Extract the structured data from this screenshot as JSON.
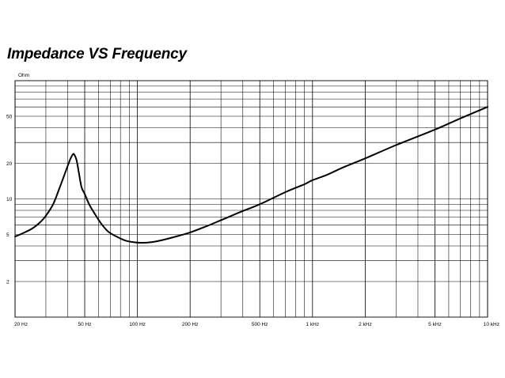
{
  "chart_data": {
    "type": "line",
    "title": "Impedance VS Frequency",
    "ylabel": "Ohm",
    "xlabel": "",
    "x_scale": "log",
    "y_scale": "log",
    "xlim": [
      20,
      10000
    ],
    "ylim": [
      1,
      100
    ],
    "grid": true,
    "x_ticks": [
      {
        "value": 20,
        "label": "20 Hz"
      },
      {
        "value": 50,
        "label": "50 Hz"
      },
      {
        "value": 100,
        "label": "100 Hz"
      },
      {
        "value": 200,
        "label": "200 Hz"
      },
      {
        "value": 500,
        "label": "500 Hz"
      },
      {
        "value": 1000,
        "label": "1 kHz"
      },
      {
        "value": 2000,
        "label": "2 kHz"
      },
      {
        "value": 5000,
        "label": "5 kHz"
      },
      {
        "value": 10000,
        "label": "10 kHz"
      }
    ],
    "y_ticks": [
      {
        "value": 2,
        "label": "2"
      },
      {
        "value": 5,
        "label": "5"
      },
      {
        "value": 10,
        "label": "10"
      },
      {
        "value": 20,
        "label": "20"
      },
      {
        "value": 50,
        "label": "50"
      }
    ],
    "series": [
      {
        "color": "#000000",
        "points": [
          [
            20,
            4.8
          ],
          [
            22,
            5.1
          ],
          [
            25,
            5.6
          ],
          [
            28,
            6.4
          ],
          [
            30,
            7.2
          ],
          [
            33,
            9.0
          ],
          [
            36,
            12.5
          ],
          [
            38,
            15.5
          ],
          [
            41,
            21
          ],
          [
            42.5,
            23.5
          ],
          [
            43.5,
            23.8
          ],
          [
            45,
            21
          ],
          [
            46.5,
            16
          ],
          [
            48,
            12.5
          ],
          [
            50,
            11
          ],
          [
            53,
            9
          ],
          [
            57,
            7.5
          ],
          [
            62,
            6.2
          ],
          [
            68,
            5.3
          ],
          [
            76,
            4.8
          ],
          [
            85,
            4.45
          ],
          [
            95,
            4.3
          ],
          [
            105,
            4.25
          ],
          [
            120,
            4.3
          ],
          [
            140,
            4.5
          ],
          [
            170,
            4.85
          ],
          [
            200,
            5.2
          ],
          [
            250,
            5.9
          ],
          [
            300,
            6.6
          ],
          [
            400,
            7.9
          ],
          [
            500,
            9.0
          ],
          [
            700,
            11.4
          ],
          [
            900,
            13.3
          ],
          [
            1000,
            14.4
          ],
          [
            1200,
            15.9
          ],
          [
            1500,
            18.5
          ],
          [
            2000,
            22.0
          ],
          [
            3000,
            28.5
          ],
          [
            5000,
            38.5
          ],
          [
            7000,
            48
          ],
          [
            10000,
            60
          ]
        ]
      }
    ]
  }
}
